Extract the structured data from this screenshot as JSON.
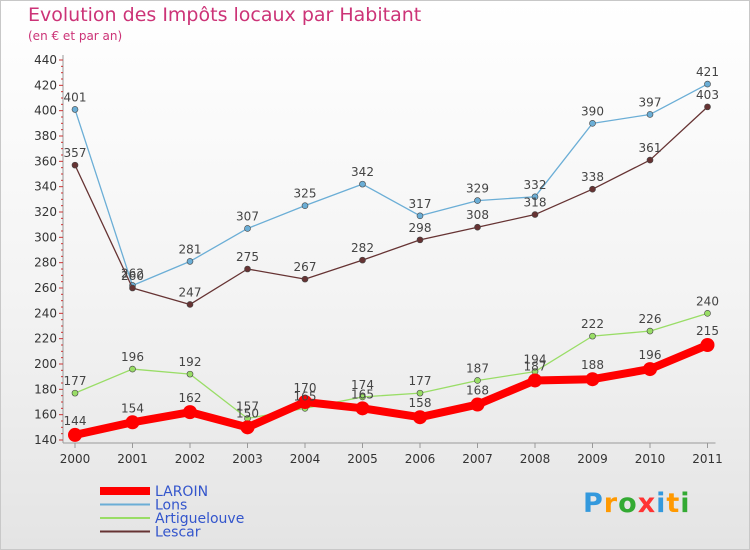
{
  "header": {
    "title": "Evolution des Impôts locaux par Habitant",
    "subtitle": "(en € et par an)"
  },
  "chart_data": {
    "type": "line",
    "x": [
      "2000",
      "2001",
      "2002",
      "2003",
      "2004",
      "2005",
      "2006",
      "2007",
      "2008",
      "2009",
      "2010",
      "2011"
    ],
    "ylim": [
      140,
      440
    ],
    "yticks": [
      140,
      160,
      180,
      200,
      220,
      240,
      260,
      280,
      300,
      320,
      340,
      360,
      380,
      400,
      420,
      440
    ],
    "xlabel": "",
    "ylabel": "",
    "grid": false,
    "legend_position": "bottom-left",
    "series": [
      {
        "name": "LAROIN",
        "color": "#ff0000",
        "values": [
          144,
          154,
          162,
          150,
          170,
          165,
          158,
          168,
          187,
          188,
          196,
          215
        ]
      },
      {
        "name": "Lons",
        "color": "#6baed6",
        "values": [
          401,
          262,
          281,
          307,
          325,
          342,
          317,
          329,
          332,
          390,
          397,
          421
        ]
      },
      {
        "name": "Artiguelouve",
        "color": "#99dd66",
        "values": [
          177,
          196,
          192,
          157,
          165,
          174,
          177,
          187,
          194,
          222,
          226,
          240
        ]
      },
      {
        "name": "Lescar",
        "color": "#663333",
        "values": [
          357,
          260,
          247,
          275,
          267,
          282,
          298,
          308,
          318,
          338,
          361,
          403
        ]
      }
    ]
  },
  "logo": {
    "letters": [
      "P",
      "r",
      "o",
      "x",
      "i",
      "t",
      "i"
    ],
    "colors": [
      "#3399dd",
      "#ff9900",
      "#33aa33",
      "#ff3333",
      "#3399dd",
      "#ff9900",
      "#33aa33"
    ]
  }
}
